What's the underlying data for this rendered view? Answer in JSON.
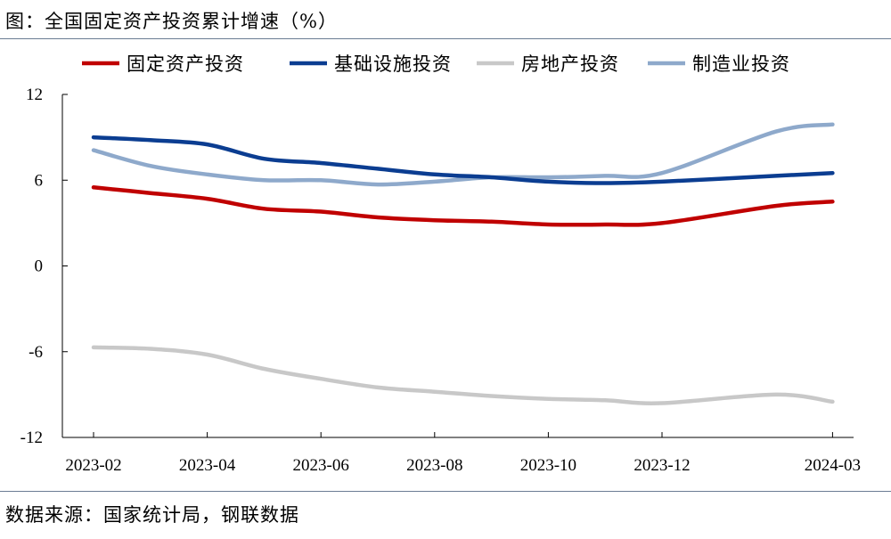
{
  "title": "图：全国固定资产投资累计增速（%）",
  "source": "数据来源：国家统计局，钢联数据",
  "chart_data": {
    "type": "line",
    "x": [
      "2023-02",
      "2023-03",
      "2023-04",
      "2023-05",
      "2023-06",
      "2023-07",
      "2023-08",
      "2023-09",
      "2023-10",
      "2023-11",
      "2023-12",
      "2024-01",
      "2024-02",
      "2024-03"
    ],
    "xticks": [
      "2023-02",
      "2023-04",
      "2023-06",
      "2023-08",
      "2023-10",
      "2023-12",
      "2024-03"
    ],
    "yticks": [
      12,
      6,
      0,
      -6,
      -12
    ],
    "ylim": [
      -12,
      12
    ],
    "legend_position": "top",
    "grid": false,
    "series": [
      {
        "name": "固定资产投资",
        "color": "#c00000",
        "values": [
          5.5,
          5.1,
          4.7,
          4.0,
          3.8,
          3.4,
          3.2,
          3.1,
          2.9,
          2.9,
          3.0,
          null,
          4.2,
          4.5
        ]
      },
      {
        "name": "基础设施投资",
        "color": "#0b3d91",
        "values": [
          9.0,
          8.8,
          8.5,
          7.5,
          7.2,
          6.8,
          6.4,
          6.2,
          5.9,
          5.8,
          5.9,
          null,
          6.3,
          6.5
        ]
      },
      {
        "name": "房地产投资",
        "color": "#c8c8c8",
        "values": [
          -5.7,
          -5.8,
          -6.2,
          -7.2,
          -7.9,
          -8.5,
          -8.8,
          -9.1,
          -9.3,
          -9.4,
          -9.6,
          null,
          -9.0,
          -9.5
        ]
      },
      {
        "name": "制造业投资",
        "color": "#8ea9cb",
        "values": [
          8.1,
          7.0,
          6.4,
          6.0,
          6.0,
          5.7,
          5.9,
          6.2,
          6.2,
          6.3,
          6.5,
          null,
          9.4,
          9.9
        ]
      }
    ]
  }
}
